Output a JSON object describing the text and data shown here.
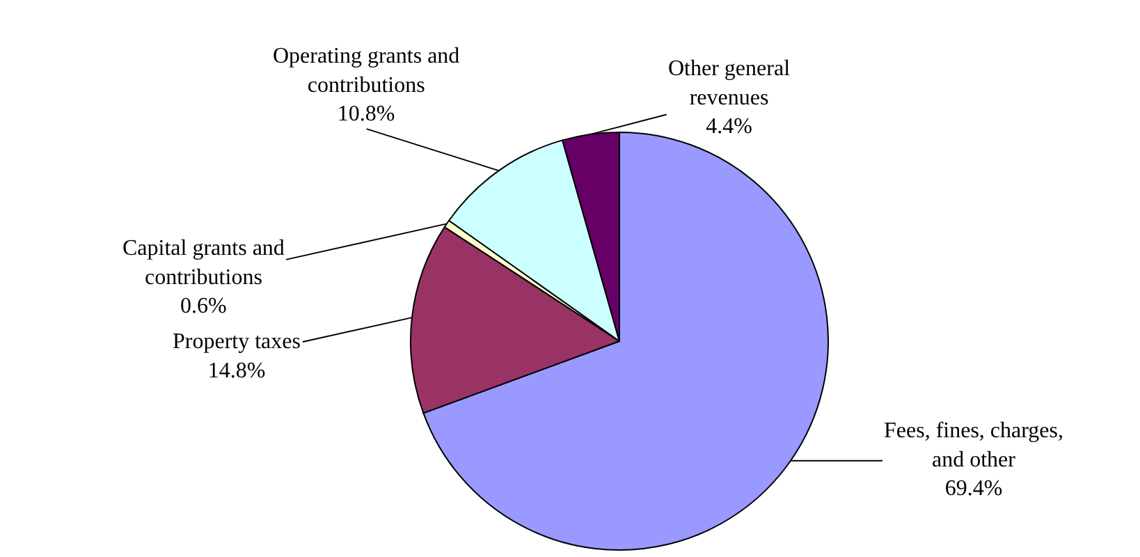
{
  "chart_data": {
    "type": "pie",
    "categories": [
      "Fees, fines, charges, and other",
      "Property taxes",
      "Capital grants and contributions",
      "Operating grants and contributions",
      "Other general revenues"
    ],
    "values": [
      69.4,
      14.8,
      0.6,
      10.8,
      4.4
    ],
    "value_labels": [
      "69.4%",
      "14.8%",
      "0.6%",
      "10.8%",
      "4.4%"
    ],
    "colors": [
      "#9999ff",
      "#993366",
      "#ffffcc",
      "#ccffff",
      "#660066"
    ],
    "legend": false
  }
}
